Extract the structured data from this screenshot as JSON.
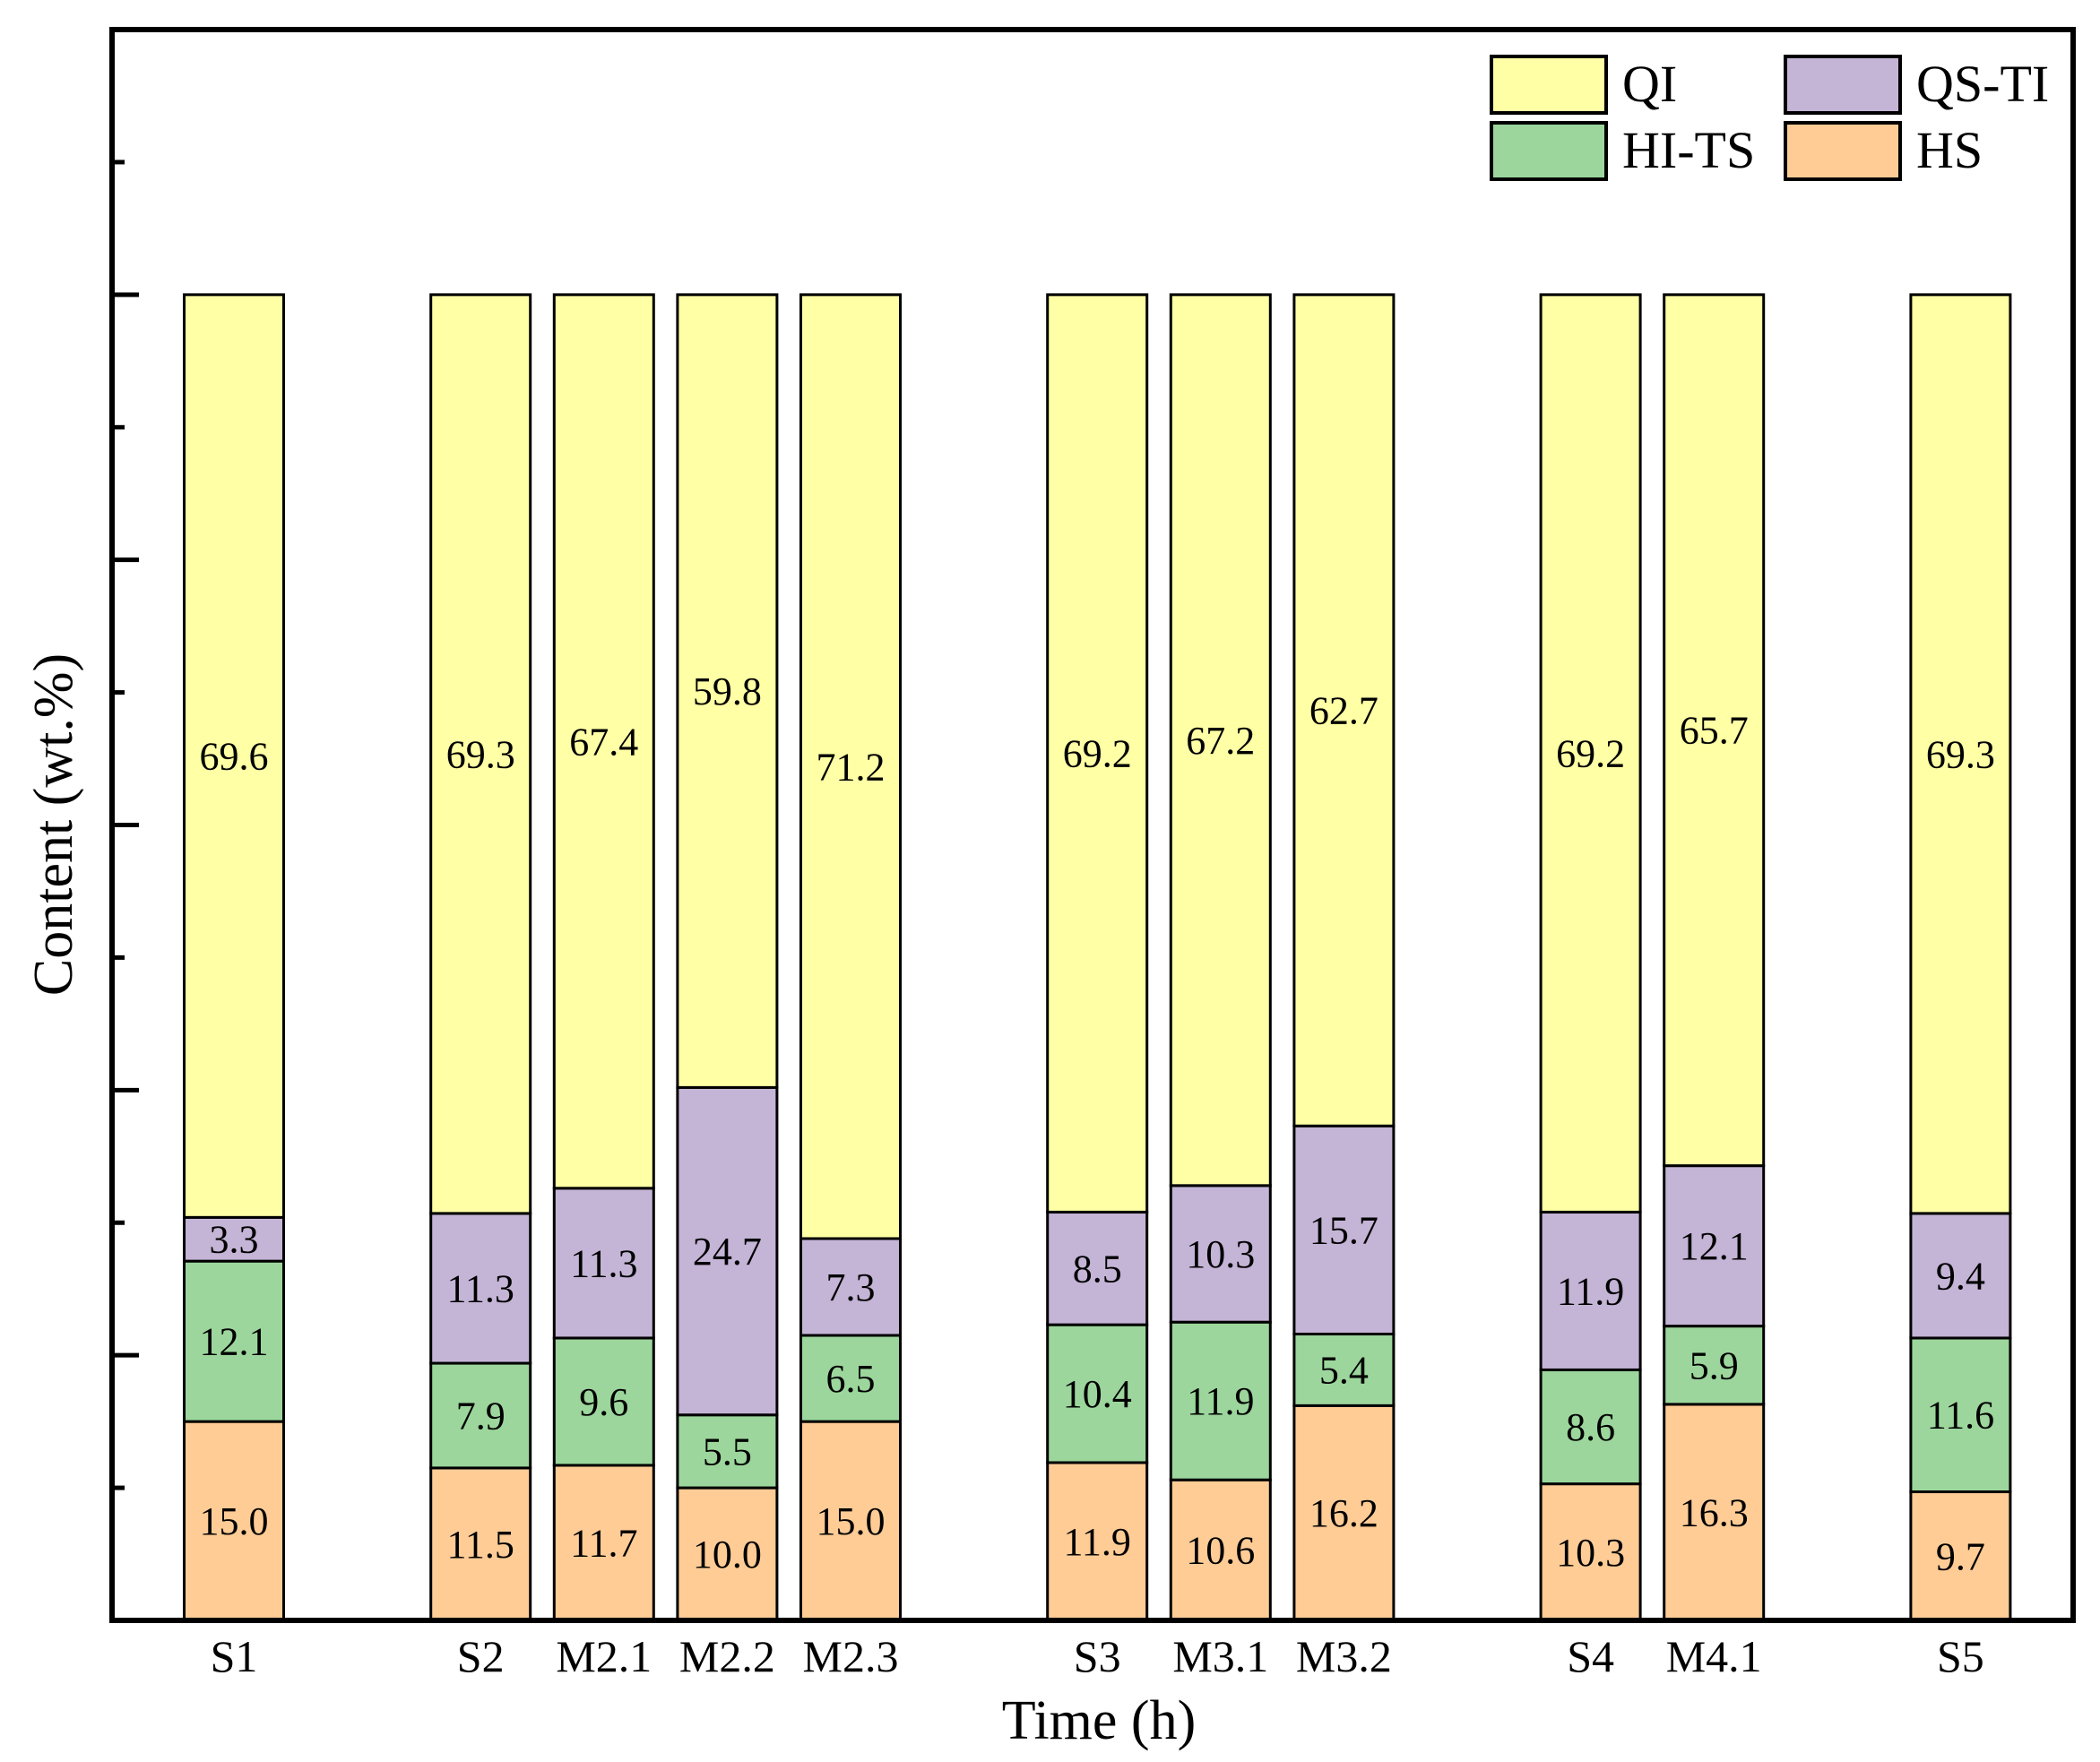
{
  "chart_data": {
    "type": "bar",
    "stacked": true,
    "title": "",
    "xlabel": "Time (h)",
    "ylabel": "Content (wt.%)",
    "ylim": [
      0,
      120
    ],
    "y_tick_step": 10,
    "y_tick_labels_shown": false,
    "grid": false,
    "legend_position": "top-right",
    "categories": [
      "S1",
      "S2",
      "M2.1",
      "M2.2",
      "M2.3",
      "S3",
      "M3.1",
      "M3.2",
      "S4",
      "M4.1",
      "S5"
    ],
    "category_slots": [
      0,
      2,
      3,
      4,
      5,
      7,
      8,
      9,
      11,
      12,
      14
    ],
    "series": [
      {
        "name": "HS",
        "color": "#FFCC96",
        "values": [
          15.0,
          11.5,
          11.7,
          10.0,
          15.0,
          11.9,
          10.6,
          16.2,
          10.3,
          16.3,
          9.7
        ]
      },
      {
        "name": "HI-TS",
        "color": "#9CD69C",
        "values": [
          12.1,
          7.9,
          9.6,
          5.5,
          6.5,
          10.4,
          11.9,
          5.4,
          8.6,
          5.9,
          11.6
        ]
      },
      {
        "name": "QS-TI",
        "color": "#C4B4D6",
        "values": [
          3.3,
          11.3,
          11.3,
          24.7,
          7.3,
          8.5,
          10.3,
          15.7,
          11.9,
          12.1,
          9.4
        ]
      },
      {
        "name": "QI",
        "color": "#FFFFA5",
        "values": [
          69.6,
          69.3,
          67.4,
          59.8,
          71.2,
          69.2,
          67.2,
          62.7,
          69.2,
          65.7,
          69.3
        ]
      }
    ],
    "legend_order": [
      "QI",
      "QS-TI",
      "HI-TS",
      "HS"
    ]
  }
}
